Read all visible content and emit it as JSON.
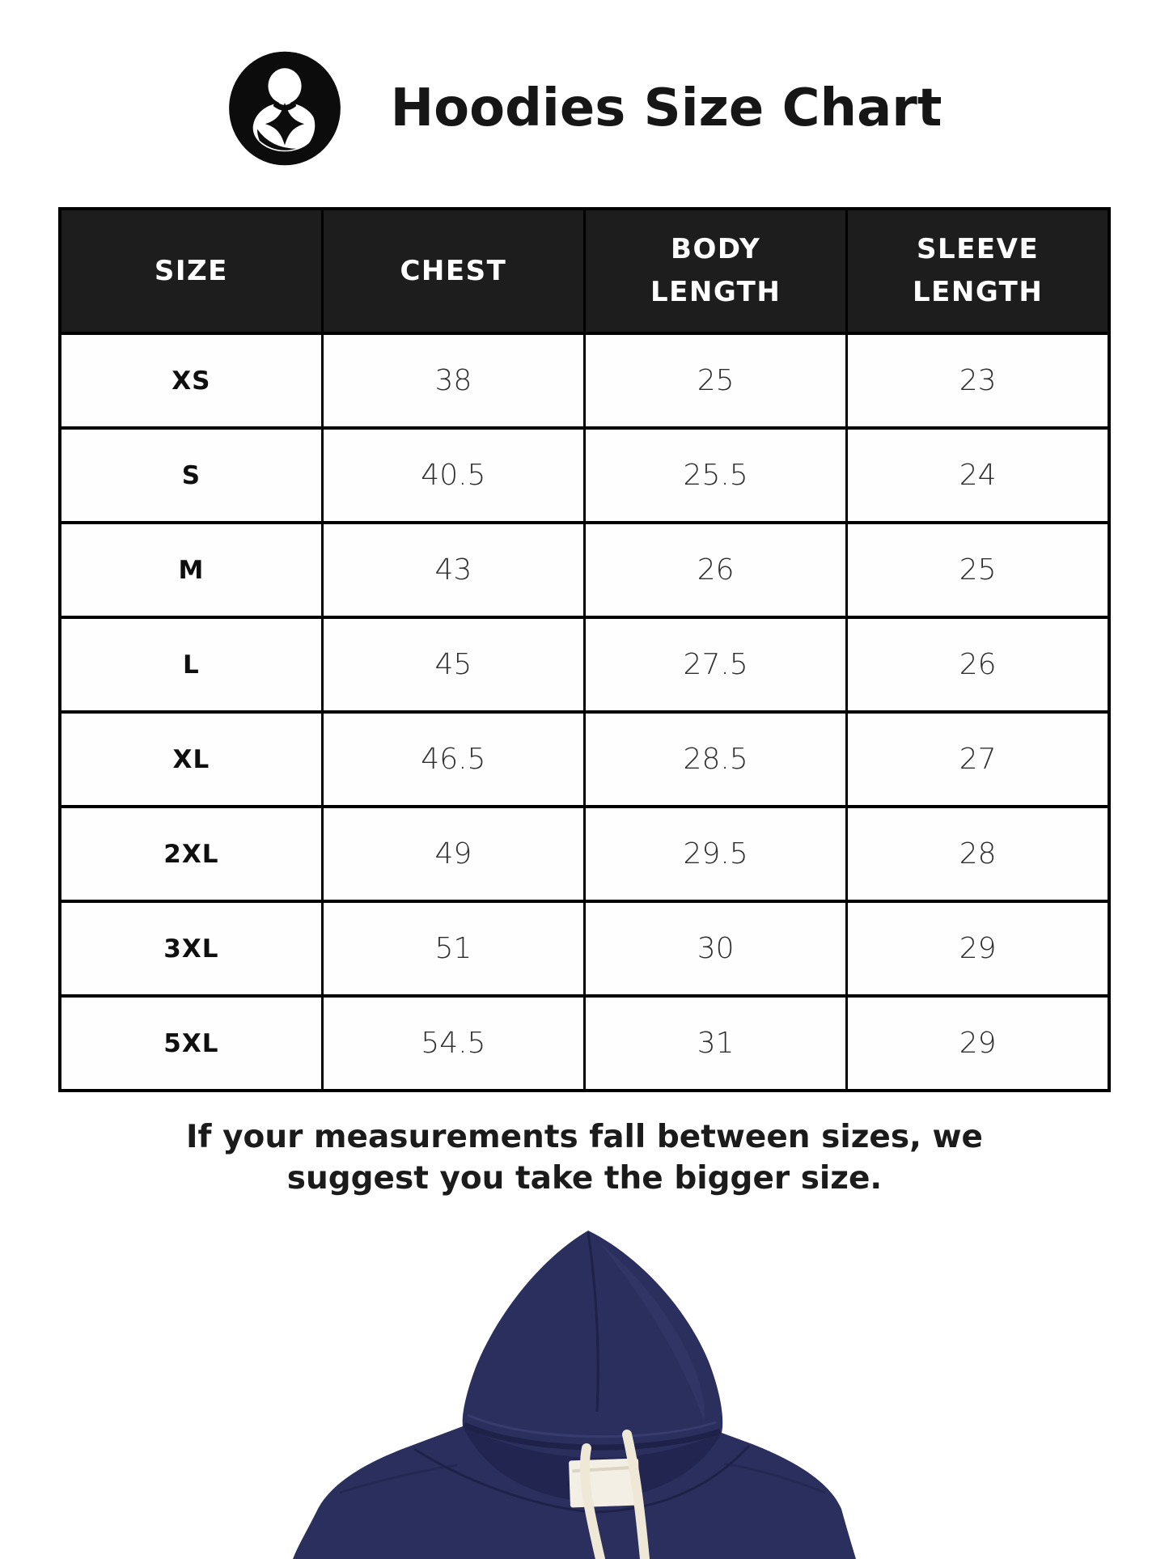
{
  "header": {
    "title": "Hoodies Size Chart",
    "logo_icon": "mother-and-child-emblem"
  },
  "table": {
    "columns": [
      "SIZE",
      "CHEST",
      "BODY\nLENGTH",
      "SLEEVE\nLENGTH"
    ],
    "rows": [
      [
        "XS",
        "38",
        "25",
        "23"
      ],
      [
        "S",
        "40.5",
        "25.5",
        "24"
      ],
      [
        "M",
        "43",
        "26",
        "25"
      ],
      [
        "L",
        "45",
        "27.5",
        "26"
      ],
      [
        "XL",
        "46.5",
        "28.5",
        "27"
      ],
      [
        "2XL",
        "49",
        "29.5",
        "28"
      ],
      [
        "3XL",
        "51",
        "30",
        "29"
      ],
      [
        "5XL",
        "54.5",
        "31",
        "29"
      ]
    ],
    "header_bg": "#1d1d1d",
    "border_color": "#000000",
    "header_text_color": "#ffffff"
  },
  "note": {
    "line1": "If your measurements fall between sizes, we",
    "line2": "suggest you take the bigger size."
  },
  "hoodie_image": {
    "description": "navy blue pullover hoodie with white drawstrings, front view, cropped at page bottom",
    "colors": {
      "fabric": "#2b2f5d",
      "inner_shadow": "#212550",
      "seam": "#1e2249",
      "highlight": "#3c4175",
      "drawstring": "#efe8d6",
      "neck_label": "#f3efe4"
    }
  }
}
